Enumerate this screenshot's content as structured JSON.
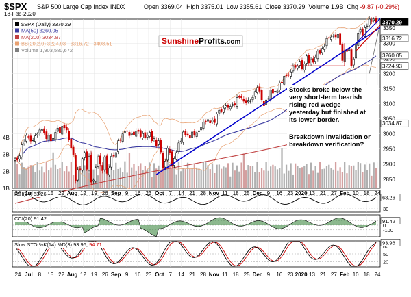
{
  "header": {
    "symbol": "$SPX",
    "description": "S&P 500 Large Cap Index INDX",
    "date": "18-Feb-2020",
    "open_label": "Open",
    "open": "3369.04",
    "high_label": "High",
    "high": "3375.01",
    "low_label": "Low",
    "low": "3355.61",
    "close_label": "Close",
    "close": "3370.29",
    "vol_label": "Volume",
    "vol": "1.9B",
    "chg_label": "Chg",
    "chg": "-9.87 (-0.29%)"
  },
  "watermark": {
    "part1": "Sunshine",
    "part2": "Profits",
    "part3": ".com"
  },
  "colors": {
    "up": "#000000",
    "down": "#cc0000",
    "ma50": "#3a3aa0",
    "ma200": "#c04040",
    "bb": "#e8a070",
    "trend": "#0000cc",
    "volume": "#b0b0b0",
    "cci_fill": "#2e7d32",
    "cci_neg": "#a04040",
    "sto_k": "#000000",
    "sto_d": "#cc0000"
  },
  "legend": [
    {
      "text": "$SPX (Daily) 3370.29",
      "color": "#000000"
    },
    {
      "text": "MA(50) 3260.05",
      "color": "#3a3aa0"
    },
    {
      "text": "MA(200) 3034.87",
      "color": "#c04040"
    },
    {
      "text": "BB(20,2.0) 3224.93 - 3316.72 - 3408.51",
      "color": "#e8a070"
    },
    {
      "text": "Volume 1,903,580,672",
      "color": "#808080"
    }
  ],
  "annotation": {
    "line1": "Stocks broke below the",
    "line2": "very short-term bearish",
    "line3": "rising red wedge",
    "line4": "yesterday but finished at",
    "line5": "its lower border.",
    "line6": "Breakdown invalidation or",
    "line7": "breakdown verification?"
  },
  "price_axis": [
    "3350",
    "3300",
    "3250",
    "3200",
    "3150",
    "3100",
    "3050",
    "3000",
    "2950",
    "2900",
    "2850"
  ],
  "price_tags": [
    {
      "text": "3370.29",
      "bg": "#000000",
      "fg": "#ffffff"
    },
    {
      "text": "3316.72",
      "bg": "#ffffff",
      "fg": "#000000"
    },
    {
      "text": "3260.05",
      "bg": "#ffffff",
      "fg": "#000000"
    },
    {
      "text": "3224.93",
      "bg": "#ffffff",
      "fg": "#000000"
    },
    {
      "text": "3034.87",
      "bg": "#ffffff",
      "fg": "#000000"
    }
  ],
  "volume_axis": [
    "4B",
    "3B",
    "2B",
    "1B"
  ],
  "x_labels": [
    "24",
    "Jul",
    "8",
    "15",
    "22",
    "Aug",
    "12",
    "19",
    "26",
    "Sep",
    "9",
    "16",
    "23",
    "Oct",
    "7",
    "14",
    "21",
    "28",
    "Nov",
    "11",
    "18",
    "25",
    "Dec",
    "9",
    "16",
    "23",
    "2020",
    "13",
    "21",
    "27",
    "Feb",
    "10",
    "18",
    "24"
  ],
  "rsi": {
    "label": "RSI(14) 63.26",
    "axis": [
      "70",
      "30"
    ],
    "tag": "63.26"
  },
  "cci": {
    "label": "CCI(20) 91.42",
    "axis": [
      "100",
      "0",
      "-100"
    ],
    "tag": "91.42"
  },
  "sto": {
    "label_a": "Slow STO %K(14) %D(3) 93.96,",
    "label_b": "94.71",
    "axis": [
      "80",
      "50",
      "20"
    ],
    "tag": "93.96"
  },
  "chart_data": {
    "type": "candlestick",
    "title": "$SPX S&P 500 Large Cap Index INDX",
    "period": "Daily",
    "x_start": "24 Jun 2019",
    "x_end": "18 Feb 2020",
    "ylim": [
      2820,
      3380
    ],
    "close": [
      2917,
      2913,
      2927,
      2964,
      2973,
      2995,
      2990,
      2976,
      2979,
      2993,
      2999,
      3013,
      3014,
      3004,
      2984,
      2995,
      2977,
      2985,
      3005,
      3019,
      3003,
      3025,
      3020,
      3013,
      2980,
      2953,
      2932,
      2844,
      2881,
      2883,
      2918,
      2938,
      2883,
      2926,
      2840,
      2847,
      2888,
      2924,
      2900,
      2878,
      2924,
      2869,
      2887,
      2926,
      2926,
      2938,
      2977,
      2979,
      3000,
      3007,
      3009,
      2994,
      3003,
      2996,
      3009,
      3008,
      2991,
      3001,
      2986,
      2995,
      3005,
      2977,
      2984,
      2961,
      2977,
      2940,
      2887,
      2910,
      2952,
      2938,
      2893,
      2919,
      2938,
      2970,
      2976,
      3006,
      2996,
      2998,
      2986,
      3006,
      2995,
      3004,
      3010,
      3022,
      3039,
      3039,
      3047,
      3036,
      3046,
      3037,
      3066,
      3078,
      3075,
      3085,
      3093,
      3087,
      3091,
      3097,
      3095,
      3120,
      3122,
      3120,
      3108,
      3103,
      3111,
      3110,
      3121,
      3140,
      3153,
      3141,
      3113,
      3093,
      3112,
      3117,
      3145,
      3135,
      3141,
      3142,
      3168,
      3168,
      3191,
      3193,
      3195,
      3205,
      3224,
      3221,
      3224,
      3240,
      3215,
      3231,
      3258,
      3235,
      3246,
      3237,
      3253,
      3274,
      3266,
      3283,
      3289,
      3316,
      3317,
      3321,
      3325,
      3321,
      3330,
      3295,
      3243,
      3276,
      3273,
      3283,
      3225,
      3248,
      3297,
      3334,
      3345,
      3327,
      3352,
      3357,
      3380,
      3373,
      3380,
      3370
    ],
    "ma50": {
      "name": "MA(50)",
      "last": 3260.05
    },
    "ma200": {
      "name": "MA(200)",
      "last": 3034.87
    },
    "bollinger": {
      "name": "BB(20,2.0)",
      "lower": 3224.93,
      "middle": 3316.72,
      "upper": 3408.51
    },
    "volume": {
      "name": "Volume",
      "last": 1903580672,
      "range": [
        1.6,
        3.9
      ],
      "unit": "B"
    },
    "rsi": {
      "period": 14,
      "last": 63.26,
      "levels": [
        70,
        30
      ]
    },
    "cci": {
      "period": 20,
      "last": 91.42,
      "levels": [
        100,
        0,
        -100
      ]
    },
    "slow_sto": {
      "k": 93.96,
      "d": 94.71,
      "levels": [
        80,
        50,
        20
      ]
    }
  }
}
